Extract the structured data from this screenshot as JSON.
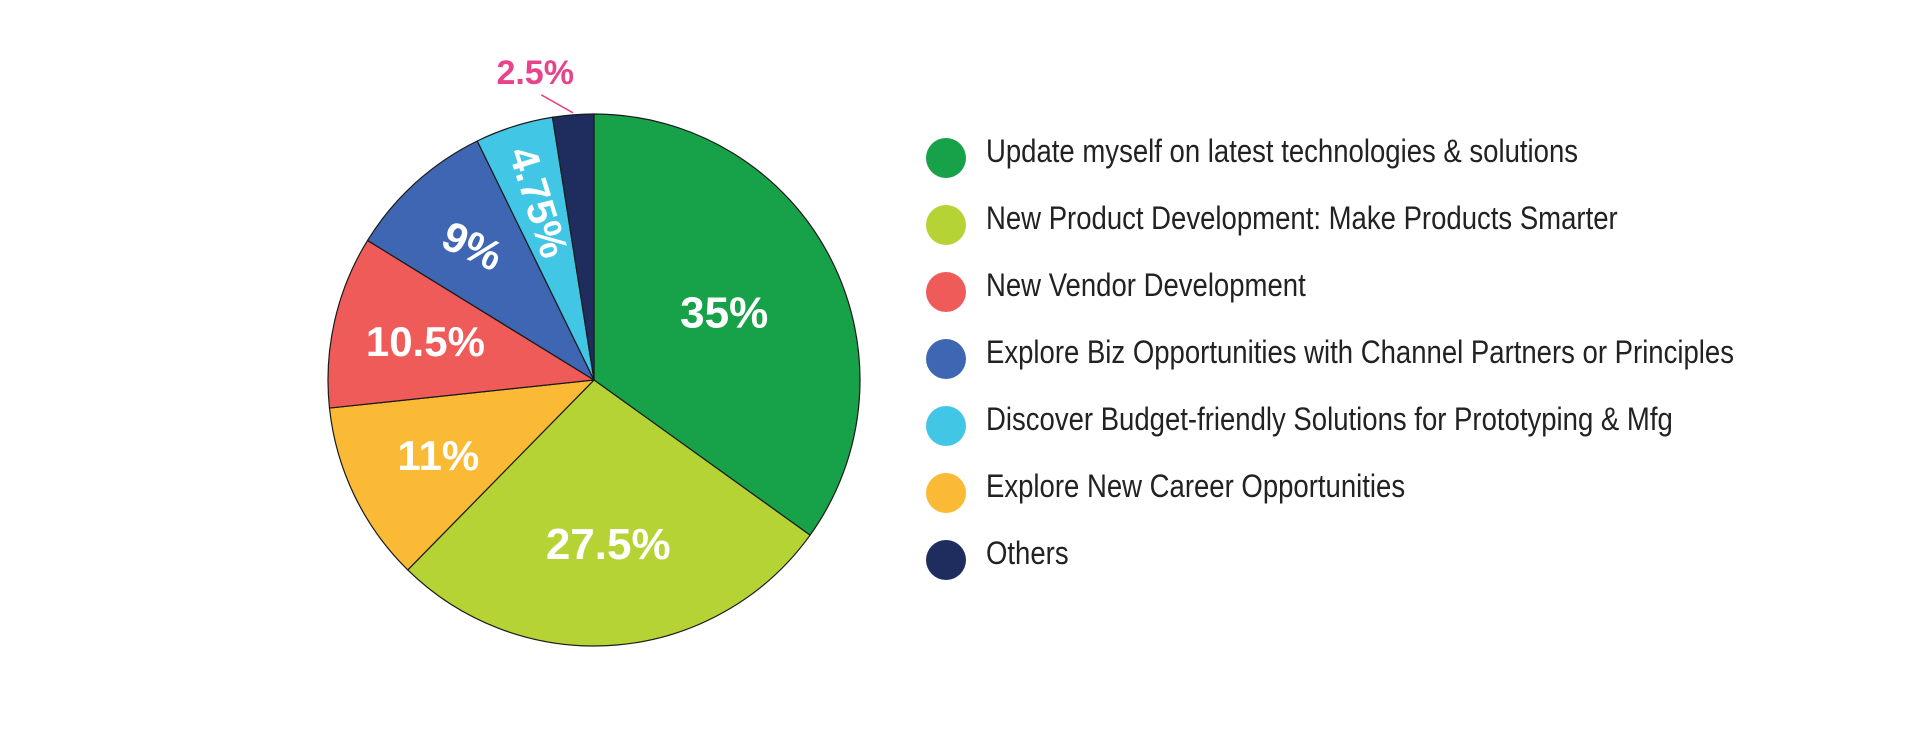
{
  "chart_data": {
    "type": "pie",
    "title": "",
    "categories": [
      "Update myself on latest technologies & solutions",
      "New Product Development: Make Products Smarter",
      "New Vendor Development",
      "Explore Biz Opportunities with Channel Partners or Principles",
      "Discover Budget-friendly Solutions for Prototyping & Mfg",
      "Explore New Career Opportunities",
      "Others"
    ],
    "slices": [
      {
        "label": "Update myself on latest technologies & solutions",
        "value": 35,
        "display": "35%",
        "color": "#17A149"
      },
      {
        "label": "New Product Development: Make Products Smarter",
        "value": 27.5,
        "display": "27.5%",
        "color": "#B5D334"
      },
      {
        "label": "Explore New Career Opportunities",
        "value": 11,
        "display": "11%",
        "color": "#FBBA35"
      },
      {
        "label": "New Vendor Development",
        "value": 10.5,
        "display": "10.5%",
        "color": "#EE5B59"
      },
      {
        "label": "Explore Biz Opportunities with Channel Partners or Principles",
        "value": 9,
        "display": "9%",
        "color": "#3F66B2"
      },
      {
        "label": "Discover Budget-friendly Solutions for Prototyping & Mfg",
        "value": 4.75,
        "display": "4.75%",
        "color": "#41C6E6"
      },
      {
        "label": "Others",
        "value": 2.5,
        "display": "2.5%",
        "color": "#1E2D5E"
      }
    ],
    "callout_color": "#E8448B",
    "legend_position": "right",
    "legend": [
      {
        "label": "Update myself on latest technologies & solutions",
        "color": "#17A149"
      },
      {
        "label": "New Product Development: Make Products Smarter",
        "color": "#B5D334"
      },
      {
        "label": "New Vendor Development",
        "color": "#EE5B59"
      },
      {
        "label": "Explore Biz Opportunities with Channel Partners or Principles",
        "color": "#3F66B2"
      },
      {
        "label": "Discover Budget-friendly Solutions for Prototyping & Mfg",
        "color": "#41C6E6"
      },
      {
        "label": "Explore New Career Opportunities",
        "color": "#FBBA35"
      },
      {
        "label": "Others",
        "color": "#1E2D5E"
      }
    ]
  }
}
